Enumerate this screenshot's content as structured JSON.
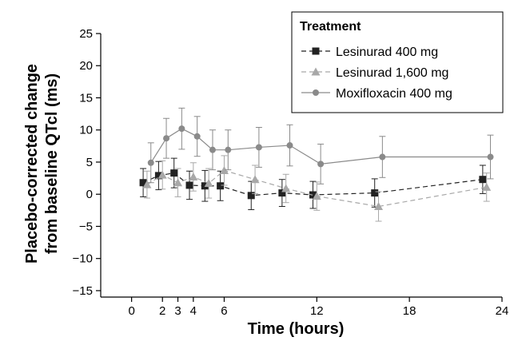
{
  "chart_data": {
    "type": "line",
    "xlabel": "Time (hours)",
    "ylabel_line1": "Placebo-corrected change",
    "ylabel_line2": "from baseline QTcl (ms)",
    "xlim": [
      -2,
      24
    ],
    "ylim": [
      -16,
      25
    ],
    "x_ticks": [
      0,
      2,
      3,
      4,
      6,
      12,
      18,
      24
    ],
    "y_ticks": [
      -15,
      -10,
      -5,
      0,
      5,
      10,
      15,
      20,
      25
    ],
    "grid": false,
    "legend": {
      "title": "Treatment",
      "placement": "top-right"
    },
    "series": [
      {
        "name": "Lesinurad 400 mg",
        "color": "#222222",
        "marker": "square",
        "line_style": "dashed",
        "x": [
          0.75,
          1.75,
          2.75,
          3.75,
          4.75,
          5.75,
          7.75,
          9.75,
          11.75,
          15.75,
          22.75
        ],
        "y": [
          1.8,
          2.9,
          3.3,
          1.4,
          1.3,
          1.3,
          -0.2,
          0.2,
          -0.1,
          0.2,
          2.3
        ],
        "err": [
          2.2,
          2.2,
          2.3,
          2.2,
          2.4,
          2.3,
          2.2,
          2.1,
          2.1,
          2.2,
          2.2
        ]
      },
      {
        "name": "Lesinurad 1,600 mg",
        "color": "#a8a8a8",
        "marker": "triangle",
        "line_style": "dashed",
        "x": [
          1.0,
          2.0,
          3.0,
          4.0,
          5.0,
          6.0,
          8.0,
          10.0,
          12.0,
          16.0,
          23.0
        ],
        "y": [
          1.5,
          3.0,
          1.8,
          2.7,
          1.7,
          3.7,
          2.3,
          0.9,
          -0.3,
          -1.9,
          1.1
        ],
        "err": [
          2.1,
          2.2,
          2.2,
          2.2,
          2.3,
          2.3,
          2.2,
          2.2,
          2.2,
          2.3,
          2.2
        ]
      },
      {
        "name": "Moxifloxacin 400 mg",
        "color": "#8a8a8a",
        "marker": "circle",
        "line_style": "solid",
        "x": [
          1.25,
          2.25,
          3.25,
          4.25,
          5.25,
          6.25,
          8.25,
          10.25,
          12.25,
          16.25,
          23.25
        ],
        "y": [
          4.9,
          8.7,
          10.2,
          9.0,
          6.9,
          6.9,
          7.3,
          7.6,
          4.7,
          5.8,
          5.8
        ],
        "err": [
          3.1,
          3.1,
          3.2,
          3.1,
          3.1,
          3.1,
          3.1,
          3.2,
          3.1,
          3.2,
          3.4
        ]
      }
    ]
  }
}
